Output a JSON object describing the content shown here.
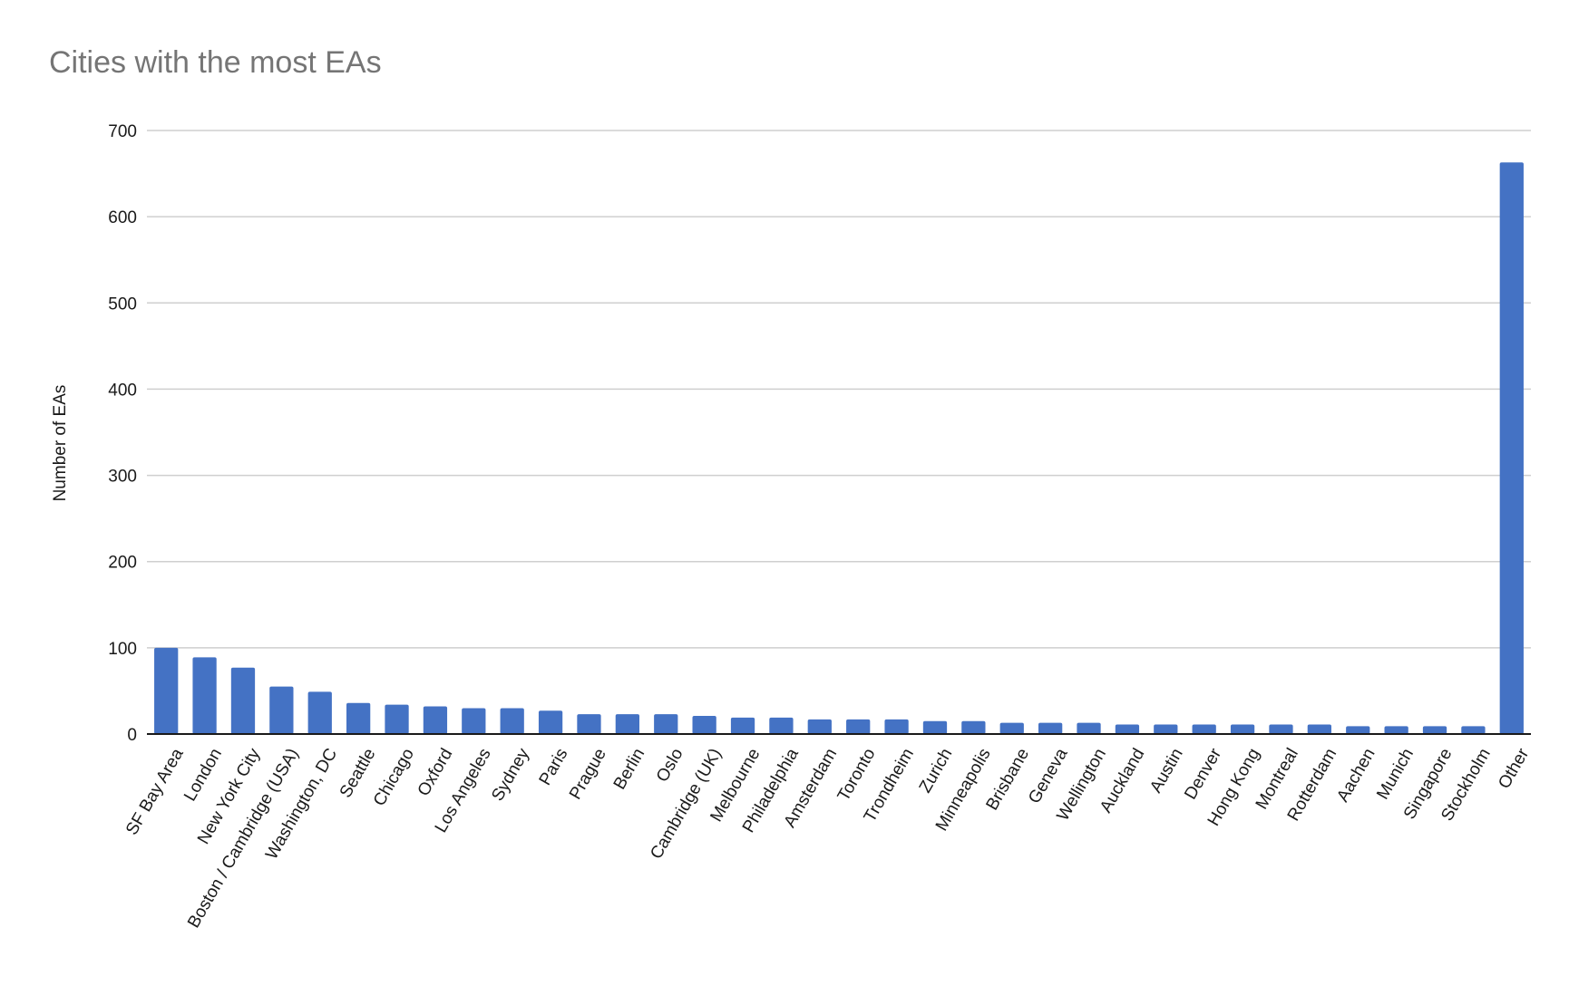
{
  "chart_data": {
    "type": "bar",
    "title": "Cities with the most EAs",
    "xlabel": "",
    "ylabel": "Number of EAs",
    "ylim": [
      0,
      700
    ],
    "yticks": [
      0,
      100,
      200,
      300,
      400,
      500,
      600,
      700
    ],
    "grid": true,
    "legend": "none",
    "bar_color": "#4472C4",
    "categories": [
      "SF Bay Area",
      "London",
      "New York City",
      "Boston / Cambridge (USA)",
      "Washington, DC",
      "Seattle",
      "Chicago",
      "Oxford",
      "Los Angeles",
      "Sydney",
      "Paris",
      "Prague",
      "Berlin",
      "Oslo",
      "Cambridge (UK)",
      "Melbourne",
      "Philadelphia",
      "Amsterdam",
      "Toronto",
      "Trondheim",
      "Zurich",
      "Minneapolis",
      "Brisbane",
      "Geneva",
      "Wellington",
      "Auckland",
      "Austin",
      "Denver",
      "Hong Kong",
      "Montreal",
      "Rotterdam",
      "Aachen",
      "Munich",
      "Singapore",
      "Stockholm",
      "Other"
    ],
    "values": [
      100,
      89,
      77,
      55,
      49,
      36,
      34,
      32,
      30,
      30,
      27,
      23,
      23,
      23,
      21,
      19,
      19,
      17,
      17,
      17,
      15,
      15,
      13,
      13,
      13,
      11,
      11,
      11,
      11,
      11,
      11,
      9,
      9,
      9,
      9,
      663
    ]
  }
}
